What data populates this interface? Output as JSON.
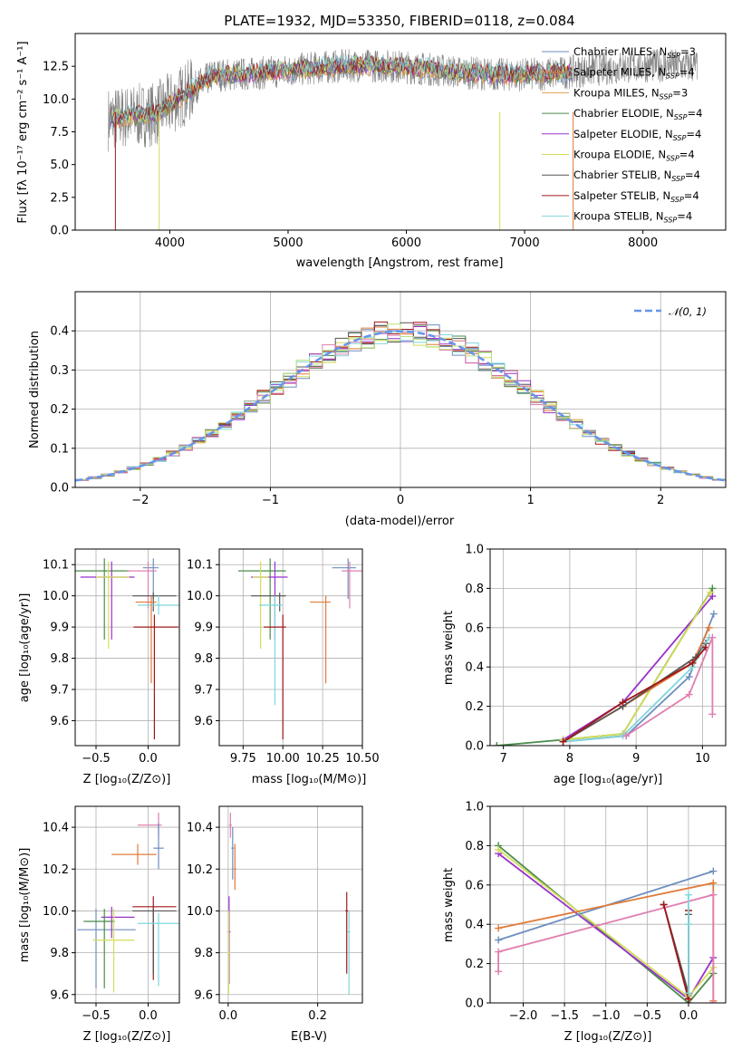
{
  "colors": {
    "chabrier_miles": "#6c8ebf",
    "salpeter_miles": "#6ec6d8",
    "kroupa_miles": "#e07b39",
    "chabrier_elodie": "#4a8c4a",
    "salpeter_elodie": "#9932cc",
    "kroupa_elodie": "#d4dc5a",
    "chabrier_stelib": "#555555",
    "salpeter_stelib": "#a01818",
    "kroupa_stelib": "#7fd6dc",
    "data": "#808080",
    "normal": "#6495ed",
    "pink": "#e07fb0",
    "lightgreen": "#b8e07a"
  },
  "chart_data": [
    {
      "id": "spectrum",
      "type": "line",
      "title": "PLATE=1932, MJD=53350, FIBERID=0118, z=0.084",
      "xlabel": "wavelength [Angstrom, rest frame]",
      "ylabel": "Flux [fλ 10⁻¹⁷ erg cm⁻² s⁻¹ A⁻¹]",
      "xlim": [
        3200,
        8700
      ],
      "ylim": [
        0,
        15
      ],
      "xticks": [
        "4000",
        "5000",
        "6000",
        "7000",
        "8000"
      ],
      "yticks": [
        "0.0",
        "2.5",
        "5.0",
        "7.5",
        "10.0",
        "12.5"
      ],
      "legend_position": "top-right",
      "legend": [
        {
          "label": "Chabrier MILES, N",
          "sub": "SSP",
          "suffix": "=3",
          "color": "#6c8ebf"
        },
        {
          "label": "Salpeter MILES, N",
          "sub": "SSP",
          "suffix": "=4",
          "color": "#e07b39"
        },
        {
          "label": "Kroupa MILES, N",
          "sub": "SSP",
          "suffix": "=3",
          "color": "#e0a050"
        },
        {
          "label": "Chabrier ELODIE, N",
          "sub": "SSP",
          "suffix": "=4",
          "color": "#4a8c4a"
        },
        {
          "label": "Salpeter ELODIE, N",
          "sub": "SSP",
          "suffix": "=4",
          "color": "#9932cc"
        },
        {
          "label": "Kroupa ELODIE, N",
          "sub": "SSP",
          "suffix": "=4",
          "color": "#d4dc5a"
        },
        {
          "label": "Chabrier STELIB, N",
          "sub": "SSP",
          "suffix": "=4",
          "color": "#555555"
        },
        {
          "label": "Salpeter STELIB, N",
          "sub": "SSP",
          "suffix": "=4",
          "color": "#a01818"
        },
        {
          "label": "Kroupa STELIB, N",
          "sub": "SSP",
          "suffix": "=4",
          "color": "#7fd6dc"
        }
      ]
    },
    {
      "id": "residuals",
      "type": "line",
      "xlabel": "(data-model)/error",
      "ylabel": "Normed distribution",
      "xlim": [
        -2.5,
        2.5
      ],
      "ylim": [
        0,
        0.5
      ],
      "xticks": [
        "−2",
        "−1",
        "0",
        "1",
        "2"
      ],
      "yticks": [
        "0.0",
        "0.1",
        "0.2",
        "0.3",
        "0.4"
      ],
      "legend": [
        {
          "label": "𝒩(0, 1)",
          "color": "#6495ed"
        }
      ],
      "legend_position": "top-right"
    },
    {
      "id": "age_vs_Z",
      "type": "scatter",
      "xlabel": "Z [log₁₀(Z/Z⊙)]",
      "ylabel": "age  [log₁₀(age/yr)]",
      "xlim": [
        -0.7,
        0.3
      ],
      "ylim": [
        9.52,
        10.15
      ],
      "xticks": [
        "−0.5",
        "0.0"
      ],
      "yticks": [
        "9.6",
        "9.7",
        "9.8",
        "9.9",
        "10.0",
        "10.1"
      ],
      "points": [
        {
          "x": -0.42,
          "y": 10.08,
          "xerr": [
            0.28,
            0.25
          ],
          "yerr": [
            0.22,
            0.04
          ],
          "color": "#4a8c4a"
        },
        {
          "x": -0.35,
          "y": 10.06,
          "xerr": [
            0.3,
            0.22
          ],
          "yerr": [
            0.2,
            0.05
          ],
          "color": "#9932cc"
        },
        {
          "x": -0.38,
          "y": 10.06,
          "xerr": [
            0.12,
            0.2
          ],
          "yerr": [
            0.23,
            0.05
          ],
          "color": "#d4dc5a"
        },
        {
          "x": 0.05,
          "y": 10.09,
          "xerr": [
            0.1,
            0.05
          ],
          "yerr": [
            0.1,
            0.03
          ],
          "color": "#6c8ebf"
        },
        {
          "x": 0.0,
          "y": 10.08,
          "xerr": [
            0.2,
            0.08
          ],
          "yerr": [
            0.12,
            0.03
          ],
          "color": "#e07fb0"
        },
        {
          "x": 0.05,
          "y": 10.0,
          "xerr": [
            0.2,
            0.22
          ],
          "yerr": [
            0.05,
            0.01
          ],
          "color": "#555555"
        },
        {
          "x": 0.1,
          "y": 9.97,
          "xerr": [
            0.2,
            0.2
          ],
          "yerr": [
            0.03,
            0.03
          ],
          "color": "#7fd6dc"
        },
        {
          "x": 0.03,
          "y": 9.98,
          "xerr": [
            0.15,
            0.05
          ],
          "yerr": [
            0.26,
            0.02
          ],
          "color": "#e07b39"
        },
        {
          "x": 0.06,
          "y": 9.9,
          "xerr": [
            0.2,
            0.23
          ],
          "yerr": [
            0.36,
            0.04
          ],
          "color": "#a01818"
        }
      ]
    },
    {
      "id": "age_vs_mass",
      "type": "scatter",
      "xlabel": "mass [log₁₀(M/M⊙)]",
      "xlim": [
        9.6,
        10.5
      ],
      "ylim": [
        9.52,
        10.15
      ],
      "xticks": [
        "9.75",
        "10.00",
        "10.25",
        "10.50"
      ],
      "yticks": [
        "9.6",
        "9.7",
        "9.8",
        "9.9",
        "10.0",
        "10.1"
      ],
      "points": [
        {
          "x": 9.92,
          "y": 10.08,
          "xerr": [
            0.2,
            0.1
          ],
          "yerr": [
            0.22,
            0.04
          ],
          "color": "#4a8c4a"
        },
        {
          "x": 9.95,
          "y": 10.06,
          "xerr": [
            0.15,
            0.08
          ],
          "yerr": [
            0.2,
            0.05
          ],
          "color": "#9932cc"
        },
        {
          "x": 9.86,
          "y": 10.06,
          "xerr": [
            0.05,
            0.05
          ],
          "yerr": [
            0.23,
            0.05
          ],
          "color": "#d4dc5a"
        },
        {
          "x": 10.41,
          "y": 10.09,
          "xerr": [
            0.1,
            0.05
          ],
          "yerr": [
            0.1,
            0.03
          ],
          "color": "#6c8ebf"
        },
        {
          "x": 10.42,
          "y": 10.08,
          "xerr": [
            0.05,
            0.08
          ],
          "yerr": [
            0.12,
            0.03
          ],
          "color": "#e07fb0"
        },
        {
          "x": 9.98,
          "y": 10.0,
          "xerr": [
            0.18,
            0.04
          ],
          "yerr": [
            0.05,
            0.01
          ],
          "color": "#555555"
        },
        {
          "x": 9.95,
          "y": 9.97,
          "xerr": [
            0.1,
            0.05
          ],
          "yerr": [
            0.32,
            0.03
          ],
          "color": "#7fd6dc"
        },
        {
          "x": 10.27,
          "y": 9.98,
          "xerr": [
            0.1,
            0.03
          ],
          "yerr": [
            0.26,
            0.02
          ],
          "color": "#e07b39"
        },
        {
          "x": 10.0,
          "y": 9.9,
          "xerr": [
            0.12,
            0.02
          ],
          "yerr": [
            0.36,
            0.04
          ],
          "color": "#a01818"
        }
      ]
    },
    {
      "id": "mass_weight_vs_age",
      "type": "line",
      "xlabel": "age  [log₁₀(age/yr)]",
      "ylabel": "mass weight",
      "xlim": [
        6.8,
        10.35
      ],
      "ylim": [
        0,
        1.0
      ],
      "xticks": [
        "7",
        "8",
        "9",
        "10"
      ],
      "yticks": [
        "0.0",
        "0.2",
        "0.4",
        "0.6",
        "0.8",
        "1.0"
      ],
      "series": [
        {
          "color": "#4a8c4a",
          "x": [
            6.9,
            7.9,
            8.8,
            10.15
          ],
          "y": [
            0.0,
            0.03,
            0.06,
            0.8
          ]
        },
        {
          "color": "#9932cc",
          "x": [
            7.9,
            8.8,
            10.15
          ],
          "y": [
            0.03,
            0.22,
            0.76
          ]
        },
        {
          "color": "#d4dc5a",
          "x": [
            7.9,
            8.8,
            10.12
          ],
          "y": [
            0.03,
            0.06,
            0.78
          ]
        },
        {
          "color": "#6c8ebf",
          "x": [
            7.9,
            8.85,
            9.8,
            10.17
          ],
          "y": [
            0.02,
            0.05,
            0.35,
            0.67
          ]
        },
        {
          "color": "#e07b39",
          "x": [
            7.9,
            8.8,
            9.85,
            10.1
          ],
          "y": [
            0.02,
            0.2,
            0.42,
            0.6
          ]
        },
        {
          "color": "#555555",
          "x": [
            7.9,
            8.8,
            9.9,
            10.05
          ],
          "y": [
            0.02,
            0.2,
            0.45,
            0.52
          ]
        },
        {
          "color": "#7fd6dc",
          "x": [
            7.9,
            8.8,
            9.85,
            10.1
          ],
          "y": [
            0.02,
            0.05,
            0.4,
            0.55
          ]
        },
        {
          "color": "#a01818",
          "x": [
            7.9,
            8.8,
            9.85,
            10.05
          ],
          "y": [
            0.02,
            0.22,
            0.42,
            0.5
          ]
        },
        {
          "color": "#e07fb0",
          "x": [
            8.85,
            9.8,
            10.15,
            10.15
          ],
          "y": [
            0.05,
            0.26,
            0.55,
            0.16
          ]
        }
      ]
    },
    {
      "id": "mass_vs_Z",
      "type": "scatter",
      "xlabel": "Z [log₁₀(Z/Z⊙)]",
      "ylabel": "mass [log₁₀(M/M⊙)]",
      "xlim": [
        -0.7,
        0.3
      ],
      "ylim": [
        9.56,
        10.5
      ],
      "xticks": [
        "−0.5",
        "0.0"
      ],
      "yticks": [
        "9.6",
        "9.8",
        "10.0",
        "10.2",
        "10.4"
      ],
      "points": [
        {
          "x": 0.1,
          "y": 10.41,
          "xerr": [
            0.2,
            0.03
          ],
          "yerr": [
            0.06,
            0.06
          ],
          "color": "#e07fb0"
        },
        {
          "x": 0.1,
          "y": 10.3,
          "xerr": [
            0.05,
            0.05
          ],
          "yerr": [
            0.1,
            0.12
          ],
          "color": "#6c8ebf"
        },
        {
          "x": -0.1,
          "y": 10.27,
          "xerr": [
            0.25,
            0.18
          ],
          "yerr": [
            0.05,
            0.05
          ],
          "color": "#e07b39"
        },
        {
          "x": 0.05,
          "y": 10.02,
          "xerr": [
            0.2,
            0.22
          ],
          "yerr": [
            0.35,
            0.05
          ],
          "color": "#a01818"
        },
        {
          "x": 0.05,
          "y": 10.0,
          "xerr": [
            0.2,
            0.22
          ],
          "yerr": [
            0.3,
            0.01
          ],
          "color": "#555555"
        },
        {
          "x": 0.1,
          "y": 9.94,
          "xerr": [
            0.2,
            0.2
          ],
          "yerr": [
            0.3,
            0.05
          ],
          "color": "#7fd6dc"
        },
        {
          "x": -0.5,
          "y": 9.91,
          "xerr": [
            0.18,
            0.38
          ],
          "yerr": [
            0.28,
            0.1
          ],
          "color": "#6c8ebf"
        },
        {
          "x": -0.35,
          "y": 9.97,
          "xerr": [
            0.1,
            0.22
          ],
          "yerr": [
            0.1,
            0.05
          ],
          "color": "#9932cc"
        },
        {
          "x": -0.42,
          "y": 9.95,
          "xerr": [
            0.2,
            0.1
          ],
          "yerr": [
            0.32,
            0.06
          ],
          "color": "#4a8c4a"
        },
        {
          "x": -0.33,
          "y": 9.86,
          "xerr": [
            0.2,
            0.2
          ],
          "yerr": [
            0.25,
            0.15
          ],
          "color": "#d4dc5a"
        }
      ]
    },
    {
      "id": "mass_vs_ebv",
      "type": "scatter",
      "xlabel": "E(B-V)",
      "xlim": [
        -0.02,
        0.3
      ],
      "ylim": [
        9.56,
        10.5
      ],
      "xticks": [
        "0.0",
        "0.2"
      ],
      "yticks": [
        "9.6",
        "9.8",
        "10.0",
        "10.2",
        "10.4"
      ],
      "points": [
        {
          "x": 0.005,
          "y": 10.41,
          "xerr": [
            0.003,
            0.003
          ],
          "yerr": [
            0.06,
            0.06
          ],
          "color": "#e07fb0"
        },
        {
          "x": 0.01,
          "y": 10.3,
          "xerr": [
            0.003,
            0.003
          ],
          "yerr": [
            0.15,
            0.1
          ],
          "color": "#6c8ebf"
        },
        {
          "x": 0.015,
          "y": 10.2,
          "xerr": [
            0.003,
            0.003
          ],
          "yerr": [
            0.1,
            0.12
          ],
          "color": "#e07b39"
        },
        {
          "x": 0.265,
          "y": 10.0,
          "xerr": [
            0.003,
            0.003
          ],
          "yerr": [
            0.3,
            0.09
          ],
          "color": "#a01818"
        },
        {
          "x": 0.27,
          "y": 9.9,
          "xerr": [
            0.003,
            0.003
          ],
          "yerr": [
            0.3,
            0.1
          ],
          "color": "#7fd6dc"
        },
        {
          "x": 0.002,
          "y": 9.9,
          "xerr": [
            0.003,
            0.003
          ],
          "yerr": [
            0.25,
            0.17
          ],
          "color": "#9932cc"
        },
        {
          "x": 0.001,
          "y": 9.8,
          "xerr": [
            0.003,
            0.003
          ],
          "yerr": [
            0.2,
            0.2
          ],
          "color": "#d4dc5a"
        }
      ]
    },
    {
      "id": "mass_weight_vs_Z",
      "type": "line",
      "xlabel": "Z [log₁₀(Z/Z⊙)]",
      "ylabel": "mass weight",
      "xlim": [
        -2.4,
        0.45
      ],
      "ylim": [
        0,
        1.0
      ],
      "xticks": [
        "−2.0",
        "−1.5",
        "−1.0",
        "−0.5",
        "0.0"
      ],
      "yticks": [
        "0.0",
        "0.2",
        "0.4",
        "0.6",
        "0.8",
        "1.0"
      ],
      "series": [
        {
          "color": "#4a8c4a",
          "x": [
            -2.3,
            0.0,
            0.3
          ],
          "y": [
            0.8,
            0.0,
            0.15
          ]
        },
        {
          "color": "#9932cc",
          "x": [
            -2.3,
            0.0,
            0.3
          ],
          "y": [
            0.76,
            0.02,
            0.23
          ]
        },
        {
          "color": "#d4dc5a",
          "x": [
            -2.3,
            0.0,
            0.3
          ],
          "y": [
            0.78,
            0.03,
            0.18
          ]
        },
        {
          "color": "#6c8ebf",
          "x": [
            -2.3,
            0.3
          ],
          "y": [
            0.32,
            0.67
          ]
        },
        {
          "color": "#e07b39",
          "x": [
            -2.3,
            0.3,
            0.3
          ],
          "y": [
            0.38,
            0.61,
            0.01
          ]
        },
        {
          "color": "#e07fb0",
          "x": [
            -2.3,
            -2.3,
            0.3,
            0.3
          ],
          "y": [
            0.16,
            0.26,
            0.55,
            0.0
          ]
        },
        {
          "color": "#555555",
          "x": [
            -0.3,
            0.0,
            0.0
          ],
          "y": [
            0.5,
            0.05,
            0.45
          ]
        },
        {
          "color": "#a01818",
          "x": [
            -0.3,
            0.0,
            0.0
          ],
          "y": [
            0.5,
            0.02,
            0.47
          ]
        },
        {
          "color": "#7fd6dc",
          "x": [
            0.0,
            0.0,
            0.0
          ],
          "y": [
            0.4,
            0.05,
            0.55
          ]
        }
      ]
    }
  ]
}
